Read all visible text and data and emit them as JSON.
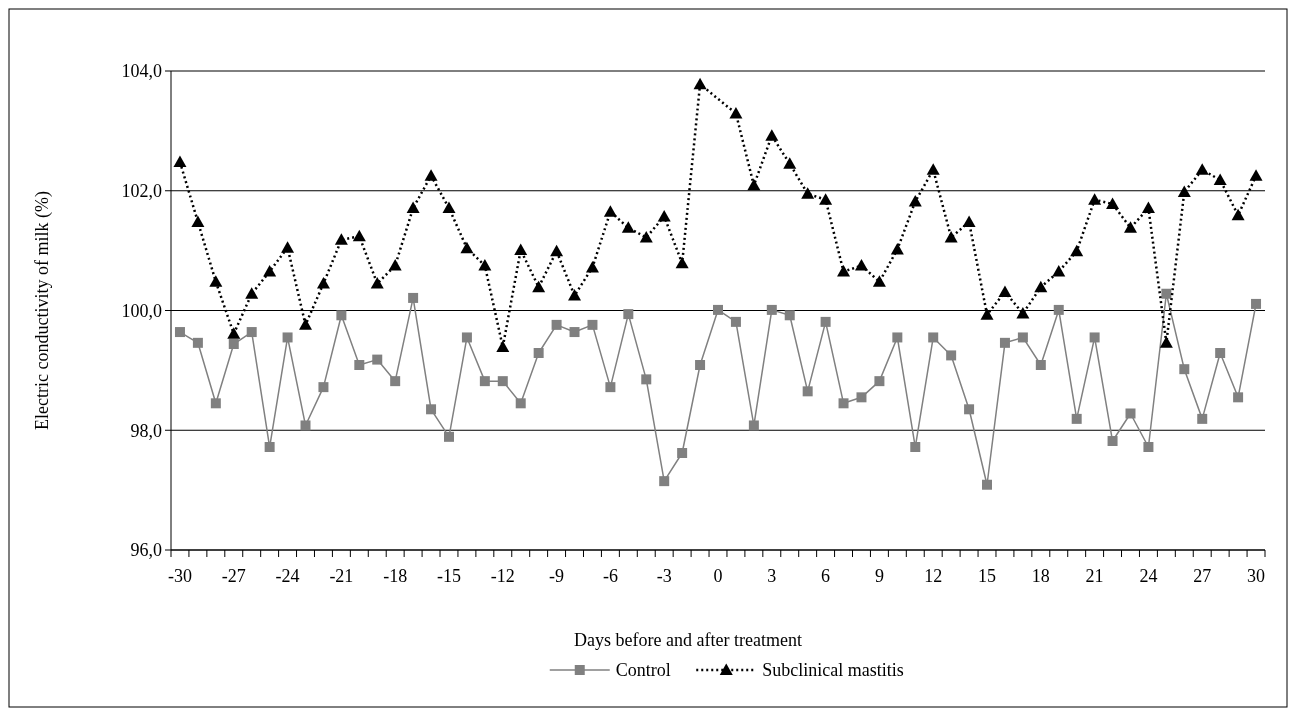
{
  "chart_data": {
    "type": "line",
    "xlabel": "Days before and after treatment",
    "ylabel": "Electric conductivity of milk (%)",
    "categories": [
      "-30",
      null,
      null,
      "-27",
      null,
      null,
      "-24",
      null,
      null,
      "-21",
      null,
      null,
      "-18",
      null,
      null,
      "-15",
      null,
      null,
      "-12",
      null,
      null,
      "-9",
      null,
      null,
      "-6",
      null,
      null,
      "-3",
      null,
      null,
      "0",
      null,
      null,
      "3",
      null,
      null,
      "6",
      null,
      null,
      "9",
      null,
      null,
      "12",
      null,
      null,
      "15",
      null,
      null,
      "18",
      null,
      null,
      "21",
      null,
      null,
      "24",
      null,
      null,
      "27",
      null,
      null,
      "30"
    ],
    "series": [
      {
        "name": "Control",
        "color": "#808080",
        "marker": "square",
        "line_style": "solid",
        "values": [
          99.64,
          99.46,
          98.45,
          99.44,
          99.64,
          97.72,
          99.55,
          98.08,
          98.72,
          99.92,
          99.09,
          99.18,
          98.82,
          100.21,
          98.35,
          97.89,
          99.55,
          98.82,
          98.82,
          98.45,
          99.29,
          99.76,
          99.64,
          99.76,
          98.72,
          99.94,
          98.85,
          97.15,
          97.62,
          99.09,
          100.01,
          99.81,
          98.08,
          100.01,
          99.92,
          98.65,
          99.81,
          98.45,
          98.55,
          98.82,
          99.55,
          97.72,
          99.55,
          99.25,
          98.35,
          97.09,
          99.46,
          99.55,
          99.09,
          100.01,
          98.19,
          99.55,
          97.82,
          98.28,
          97.72,
          100.28,
          99.02,
          98.19,
          99.29,
          98.55,
          100.11
        ]
      },
      {
        "name": "Subclinical mastitis",
        "color": "#000000",
        "marker": "triangle",
        "line_style": "dotted",
        "values": [
          102.48,
          101.48,
          100.48,
          99.61,
          100.28,
          100.65,
          101.05,
          99.76,
          100.45,
          101.18,
          101.24,
          100.45,
          100.75,
          101.71,
          102.25,
          101.71,
          101.04,
          100.75,
          99.39,
          101.01,
          100.39,
          100.99,
          100.25,
          100.72,
          101.65,
          101.38,
          101.22,
          101.57,
          100.79,
          103.78,
          null,
          103.29,
          102.09,
          102.92,
          102.45,
          101.95,
          101.85,
          100.65,
          100.75,
          100.48,
          101.02,
          101.82,
          102.35,
          101.22,
          101.48,
          99.93,
          100.31,
          99.95,
          100.39,
          100.65,
          100.99,
          101.85,
          101.78,
          101.38,
          101.71,
          99.46,
          101.98,
          102.35,
          102.18,
          101.59,
          102.25
        ]
      }
    ],
    "ylim": [
      96,
      104
    ],
    "yticks": [
      {
        "value": 96,
        "label": "96,0"
      },
      {
        "value": 98,
        "label": "98,0"
      },
      {
        "value": 100,
        "label": "100,0"
      },
      {
        "value": 102,
        "label": "102,0"
      },
      {
        "value": 104,
        "label": "104,0"
      }
    ],
    "grid": "y",
    "legend": "bottom"
  }
}
